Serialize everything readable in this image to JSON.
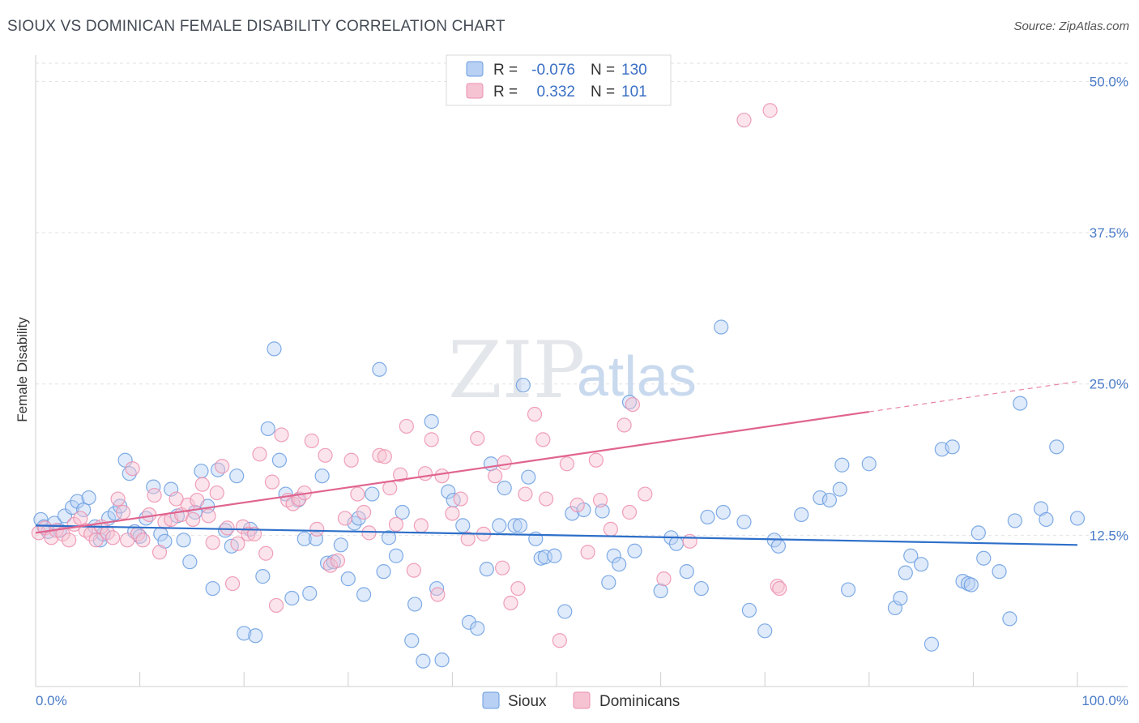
{
  "title": "SIOUX VS DOMINICAN FEMALE DISABILITY CORRELATION CHART",
  "source": "Source: ZipAtlas.com",
  "watermark": {
    "zip": "ZIP",
    "atlas": "atlas"
  },
  "colors": {
    "sioux": "#6a9de0",
    "sioux_fill": "#b8d0f3",
    "sioux_line": "#2d6fc9",
    "dominicans": "#ec8fae",
    "dominicans_fill": "#f6c3d3",
    "dominicans_line": "#e0648f"
  },
  "legend": {
    "rows": [
      {
        "r_label": "R =",
        "r_value": "-0.076",
        "n_label": "N =",
        "n_value": "130"
      },
      {
        "r_label": "R =",
        "r_value": "0.332",
        "n_label": "N =",
        "n_value": "101"
      }
    ]
  },
  "chart_data": {
    "type": "scatter",
    "title": "SIOUX VS DOMINICAN FEMALE DISABILITY CORRELATION CHART",
    "xlabel": "",
    "ylabel": "Female Disability",
    "xlim": [
      0,
      100
    ],
    "ylim": [
      0,
      51.5
    ],
    "y_ticks": [
      {
        "value": 12.5,
        "label": "12.5%"
      },
      {
        "value": 25.0,
        "label": "25.0%"
      },
      {
        "value": 37.5,
        "label": "37.5%"
      },
      {
        "value": 50.0,
        "label": "50.0%"
      }
    ],
    "x_tick_labels": [
      {
        "value": 0,
        "label": "0.0%"
      },
      {
        "value": 100,
        "label": "100.0%"
      }
    ],
    "grid": true,
    "legend_placement": "top-center",
    "series": [
      {
        "name": "Sioux",
        "R": -0.076,
        "N": 130,
        "trend": {
          "x0": 0,
          "y0": 13.3,
          "x1": 100,
          "y1": 11.7,
          "dashed_from": null
        },
        "points": [
          [
            0.5,
            13.8
          ],
          [
            0.8,
            13.2
          ],
          [
            1.2,
            12.8
          ],
          [
            1.8,
            13.5
          ],
          [
            2.3,
            12.9
          ],
          [
            2.8,
            14.1
          ],
          [
            3.5,
            14.8
          ],
          [
            4.0,
            15.3
          ],
          [
            4.6,
            14.6
          ],
          [
            5.1,
            15.6
          ],
          [
            5.7,
            13.2
          ],
          [
            6.2,
            12.1
          ],
          [
            6.5,
            12.6
          ],
          [
            7.0,
            13.9
          ],
          [
            7.6,
            14.3
          ],
          [
            8.1,
            14.9
          ],
          [
            8.6,
            18.7
          ],
          [
            9.0,
            17.6
          ],
          [
            9.5,
            12.8
          ],
          [
            10.0,
            12.4
          ],
          [
            10.6,
            13.9
          ],
          [
            11.3,
            16.5
          ],
          [
            12.0,
            12.6
          ],
          [
            12.4,
            12.0
          ],
          [
            13.0,
            16.3
          ],
          [
            13.6,
            14.1
          ],
          [
            14.2,
            12.1
          ],
          [
            14.8,
            10.3
          ],
          [
            15.3,
            14.4
          ],
          [
            15.9,
            17.8
          ],
          [
            16.5,
            14.9
          ],
          [
            17.0,
            8.1
          ],
          [
            17.5,
            17.9
          ],
          [
            18.2,
            12.9
          ],
          [
            18.8,
            11.6
          ],
          [
            19.3,
            17.4
          ],
          [
            20.0,
            4.4
          ],
          [
            20.6,
            13.0
          ],
          [
            21.1,
            4.2
          ],
          [
            21.8,
            9.1
          ],
          [
            22.3,
            21.3
          ],
          [
            22.9,
            27.9
          ],
          [
            23.4,
            18.7
          ],
          [
            24.0,
            15.9
          ],
          [
            24.6,
            7.3
          ],
          [
            25.2,
            15.4
          ],
          [
            25.8,
            12.2
          ],
          [
            26.3,
            7.7
          ],
          [
            26.9,
            12.2
          ],
          [
            27.5,
            17.4
          ],
          [
            28.0,
            10.2
          ],
          [
            28.6,
            10.3
          ],
          [
            29.3,
            11.7
          ],
          [
            30.0,
            8.9
          ],
          [
            30.6,
            13.5
          ],
          [
            31.0,
            13.9
          ],
          [
            31.5,
            7.6
          ],
          [
            32.3,
            15.9
          ],
          [
            33.0,
            26.2
          ],
          [
            33.4,
            9.5
          ],
          [
            33.9,
            12.3
          ],
          [
            34.6,
            10.8
          ],
          [
            35.2,
            14.4
          ],
          [
            36.1,
            3.8
          ],
          [
            36.4,
            6.8
          ],
          [
            37.2,
            2.1
          ],
          [
            38.0,
            21.9
          ],
          [
            38.5,
            8.1
          ],
          [
            39.0,
            2.2
          ],
          [
            39.6,
            16.1
          ],
          [
            40.1,
            15.4
          ],
          [
            41.0,
            13.3
          ],
          [
            41.6,
            5.3
          ],
          [
            42.4,
            4.8
          ],
          [
            43.3,
            9.7
          ],
          [
            43.7,
            18.4
          ],
          [
            44.5,
            13.3
          ],
          [
            45.0,
            16.4
          ],
          [
            46.0,
            13.3
          ],
          [
            46.5,
            13.3
          ],
          [
            46.8,
            24.9
          ],
          [
            47.3,
            17.3
          ],
          [
            48.0,
            12.2
          ],
          [
            48.5,
            10.6
          ],
          [
            48.9,
            10.7
          ],
          [
            49.8,
            10.8
          ],
          [
            50.8,
            6.2
          ],
          [
            51.5,
            14.3
          ],
          [
            52.6,
            14.6
          ],
          [
            54.4,
            14.5
          ],
          [
            55.0,
            8.6
          ],
          [
            55.5,
            10.8
          ],
          [
            56.0,
            10.1
          ],
          [
            57.0,
            23.5
          ],
          [
            57.5,
            11.2
          ],
          [
            60.0,
            7.9
          ],
          [
            61.0,
            12.3
          ],
          [
            61.5,
            11.8
          ],
          [
            62.5,
            9.5
          ],
          [
            63.9,
            8.1
          ],
          [
            64.5,
            14.0
          ],
          [
            65.8,
            29.7
          ],
          [
            66.0,
            14.4
          ],
          [
            68.0,
            13.6
          ],
          [
            68.5,
            6.3
          ],
          [
            70.0,
            4.6
          ],
          [
            70.9,
            12.1
          ],
          [
            71.3,
            11.6
          ],
          [
            73.5,
            14.2
          ],
          [
            75.3,
            15.6
          ],
          [
            76.2,
            15.4
          ],
          [
            77.2,
            16.3
          ],
          [
            77.4,
            18.3
          ],
          [
            78.0,
            8.0
          ],
          [
            80.0,
            18.4
          ],
          [
            82.5,
            6.5
          ],
          [
            83.0,
            7.3
          ],
          [
            83.5,
            9.4
          ],
          [
            84.0,
            10.8
          ],
          [
            85.0,
            10.1
          ],
          [
            86.0,
            3.5
          ],
          [
            87.0,
            19.6
          ],
          [
            88.0,
            19.8
          ],
          [
            89.0,
            8.7
          ],
          [
            89.5,
            8.5
          ],
          [
            89.8,
            8.4
          ],
          [
            90.5,
            12.7
          ],
          [
            91.0,
            10.6
          ],
          [
            92.5,
            9.5
          ],
          [
            93.5,
            5.6
          ],
          [
            94.0,
            13.7
          ],
          [
            94.5,
            23.4
          ],
          [
            96.5,
            14.7
          ],
          [
            97.0,
            13.8
          ],
          [
            98.0,
            19.8
          ],
          [
            100.0,
            13.9
          ]
        ]
      },
      {
        "name": "Dominicans",
        "R": 0.332,
        "N": 101,
        "trend": {
          "x0": 0,
          "y0": 12.7,
          "x1": 100,
          "y1": 25.2,
          "dashed_from": 80
        },
        "points": [
          [
            0.3,
            12.7
          ],
          [
            0.9,
            13.1
          ],
          [
            1.5,
            12.3
          ],
          [
            2.0,
            12.9
          ],
          [
            2.6,
            12.6
          ],
          [
            3.2,
            12.1
          ],
          [
            3.7,
            13.4
          ],
          [
            4.3,
            13.9
          ],
          [
            4.8,
            12.9
          ],
          [
            5.3,
            12.6
          ],
          [
            5.8,
            12.1
          ],
          [
            6.3,
            13.2
          ],
          [
            6.9,
            12.7
          ],
          [
            7.4,
            12.3
          ],
          [
            7.9,
            15.5
          ],
          [
            8.4,
            14.4
          ],
          [
            8.8,
            12.1
          ],
          [
            9.3,
            18.0
          ],
          [
            9.8,
            12.6
          ],
          [
            10.3,
            12.1
          ],
          [
            10.9,
            14.2
          ],
          [
            11.4,
            15.8
          ],
          [
            11.9,
            11.1
          ],
          [
            12.4,
            13.6
          ],
          [
            13.0,
            13.8
          ],
          [
            13.5,
            15.5
          ],
          [
            14.0,
            14.2
          ],
          [
            14.6,
            15.0
          ],
          [
            15.1,
            13.8
          ],
          [
            15.5,
            15.4
          ],
          [
            16.0,
            16.7
          ],
          [
            16.6,
            14.1
          ],
          [
            17.0,
            11.9
          ],
          [
            17.4,
            16.0
          ],
          [
            17.9,
            18.2
          ],
          [
            18.4,
            13.1
          ],
          [
            18.9,
            8.5
          ],
          [
            19.4,
            11.8
          ],
          [
            19.9,
            13.2
          ],
          [
            20.4,
            12.6
          ],
          [
            21.0,
            12.6
          ],
          [
            21.5,
            19.2
          ],
          [
            22.1,
            11.0
          ],
          [
            22.7,
            16.9
          ],
          [
            23.1,
            6.7
          ],
          [
            23.6,
            20.8
          ],
          [
            24.2,
            15.4
          ],
          [
            24.7,
            15.1
          ],
          [
            25.3,
            15.5
          ],
          [
            25.8,
            16.0
          ],
          [
            26.5,
            20.3
          ],
          [
            27.0,
            13.0
          ],
          [
            27.8,
            19.1
          ],
          [
            28.3,
            10.0
          ],
          [
            29.0,
            10.4
          ],
          [
            29.7,
            13.9
          ],
          [
            30.3,
            18.7
          ],
          [
            30.9,
            15.9
          ],
          [
            31.5,
            14.4
          ],
          [
            32.0,
            12.7
          ],
          [
            33.0,
            19.1
          ],
          [
            33.5,
            19.0
          ],
          [
            34.0,
            16.4
          ],
          [
            34.6,
            13.4
          ],
          [
            35.0,
            17.5
          ],
          [
            35.6,
            21.5
          ],
          [
            36.3,
            9.6
          ],
          [
            37.0,
            13.3
          ],
          [
            37.4,
            17.6
          ],
          [
            38.0,
            20.4
          ],
          [
            38.6,
            7.6
          ],
          [
            39.0,
            17.4
          ],
          [
            40.0,
            14.3
          ],
          [
            40.8,
            15.5
          ],
          [
            41.5,
            12.2
          ],
          [
            42.4,
            20.5
          ],
          [
            43.0,
            12.6
          ],
          [
            44.1,
            17.4
          ],
          [
            44.8,
            9.8
          ],
          [
            45.0,
            18.5
          ],
          [
            45.6,
            6.9
          ],
          [
            46.3,
            8.1
          ],
          [
            47.0,
            15.9
          ],
          [
            47.9,
            22.5
          ],
          [
            48.7,
            20.4
          ],
          [
            49.0,
            15.5
          ],
          [
            50.3,
            3.8
          ],
          [
            51.0,
            18.4
          ],
          [
            52.0,
            15.0
          ],
          [
            53.0,
            11.1
          ],
          [
            53.8,
            18.7
          ],
          [
            54.2,
            15.4
          ],
          [
            55.2,
            13.0
          ],
          [
            56.5,
            21.6
          ],
          [
            57.0,
            14.4
          ],
          [
            57.3,
            23.3
          ],
          [
            58.5,
            15.9
          ],
          [
            60.3,
            8.9
          ],
          [
            62.8,
            12.0
          ],
          [
            68.0,
            46.8
          ],
          [
            70.5,
            47.6
          ],
          [
            71.2,
            8.3
          ],
          [
            71.4,
            8.1
          ]
        ]
      }
    ]
  },
  "bottom_legend": [
    "Sioux",
    "Dominicans"
  ]
}
